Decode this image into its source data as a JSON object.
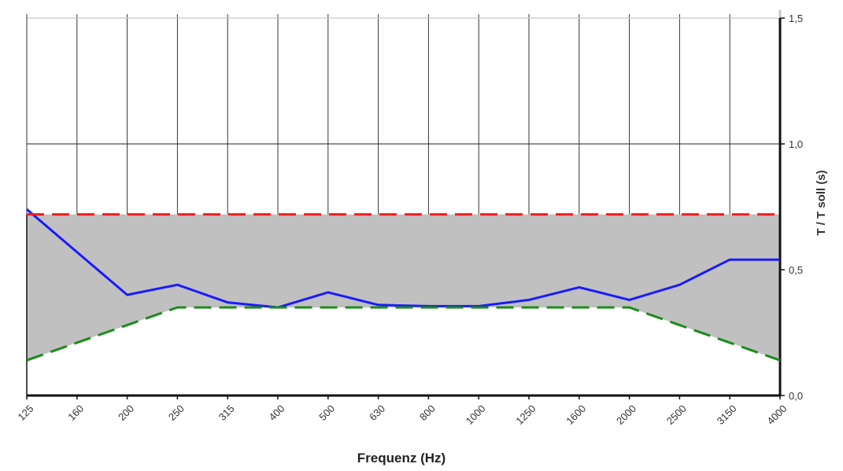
{
  "chart_data": {
    "type": "line",
    "title": "",
    "xlabel": "Frequenz (Hz)",
    "ylabel": "T / T soll (s)",
    "categories": [
      "125",
      "160",
      "200",
      "250",
      "315",
      "400",
      "500",
      "630",
      "800",
      "1000",
      "1250",
      "1600",
      "2000",
      "2500",
      "3150",
      "4000"
    ],
    "ylim": [
      0,
      1.5
    ],
    "yticks": [
      "0,0",
      "0,5",
      "1,0",
      "1,5"
    ],
    "ytick_values": [
      0,
      0.5,
      1.0,
      1.5
    ],
    "y_axis_position": "right",
    "grid": true,
    "legend": "none",
    "series": [
      {
        "values": [
          0.74,
          0.57,
          0.4,
          0.44,
          0.37,
          0.35,
          0.41,
          0.36,
          0.355,
          0.355,
          0.38,
          0.43,
          0.38,
          0.44,
          0.54,
          0.54
        ],
        "color": "#1a1aff",
        "style": "solid"
      },
      {
        "values": [
          0.72,
          0.72,
          0.72,
          0.72,
          0.72,
          0.72,
          0.72,
          0.72,
          0.72,
          0.72,
          0.72,
          0.72,
          0.72,
          0.72,
          0.72,
          0.72
        ],
        "color": "#ff1a1a",
        "style": "dashed"
      },
      {
        "values": [
          0.14,
          0.21,
          0.28,
          0.35,
          0.35,
          0.35,
          0.35,
          0.35,
          0.35,
          0.35,
          0.35,
          0.35,
          0.35,
          0.28,
          0.21,
          0.14
        ],
        "color": "#1a8c1a",
        "style": "dashed"
      }
    ],
    "tolerance_fill": "#c0c0c0"
  }
}
